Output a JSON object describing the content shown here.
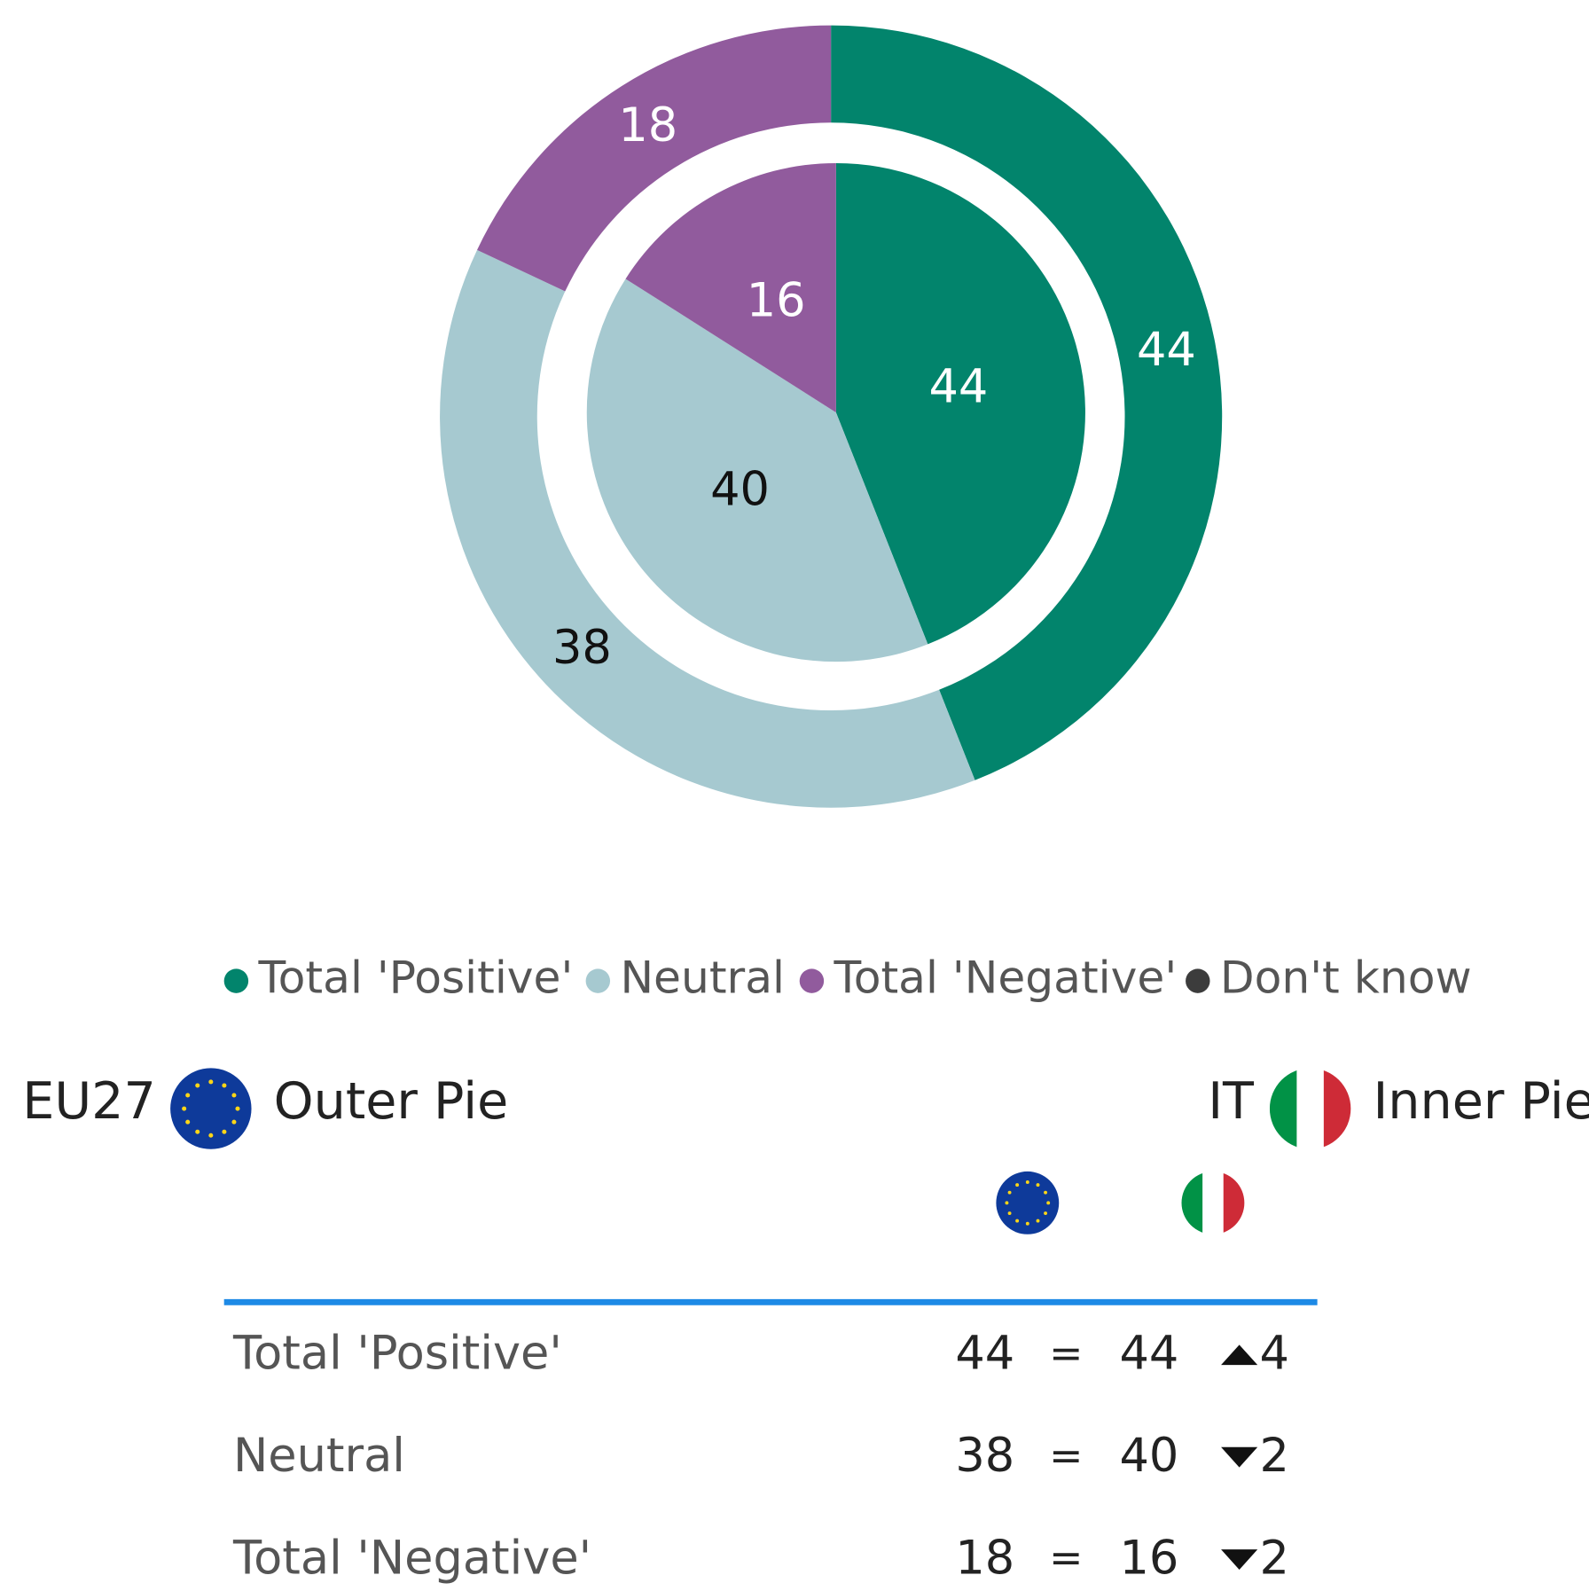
{
  "chart_data": {
    "type": "pie",
    "categories": [
      "Total 'Positive'",
      "Neutral",
      "Total 'Negative'",
      "Don't know"
    ],
    "colors": [
      "#02846c",
      "#a6c9d0",
      "#915b9d",
      "#3c3c3c"
    ],
    "series": [
      {
        "name": "EU27",
        "caption": "Outer Pie",
        "values": [
          44,
          38,
          18,
          null
        ]
      },
      {
        "name": "IT",
        "caption": "Inner Pie",
        "values": [
          44,
          40,
          16,
          null
        ]
      }
    ]
  },
  "table": {
    "rows": [
      {
        "sign": "=",
        "change": {
          "direction": "up",
          "value": 4
        }
      },
      {
        "sign": "=",
        "change": {
          "direction": "down",
          "value": 2
        }
      },
      {
        "sign": "=",
        "change": {
          "direction": "down",
          "value": 2
        }
      }
    ]
  }
}
